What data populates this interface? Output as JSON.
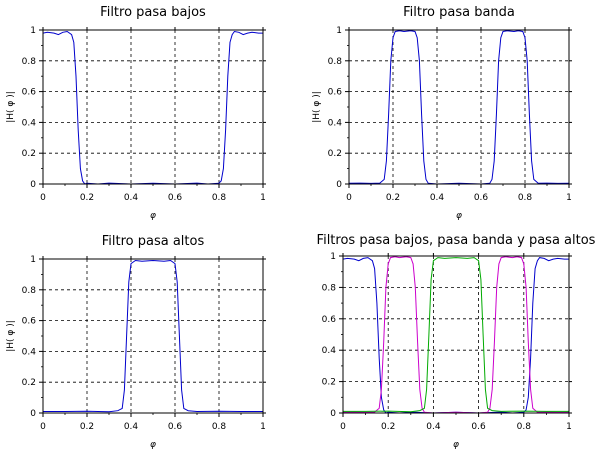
{
  "chart_data": [
    {
      "type": "line",
      "title": "Filtro pasa bajos",
      "xlabel": "φ",
      "ylabel": "|H(   φ   )|",
      "xlim": [
        0,
        1
      ],
      "ylim": [
        0,
        1
      ],
      "x_ticks": [
        "0",
        "0.2",
        "0.4",
        "0.6",
        "0.8",
        "1"
      ],
      "y_ticks": [
        "0",
        "0.2",
        "0.4",
        "0.6",
        "0.8",
        "1"
      ],
      "grid": true,
      "series": [
        {
          "color": "#0000cc",
          "x": [
            0,
            0.02,
            0.05,
            0.07,
            0.09,
            0.11,
            0.13,
            0.14,
            0.15,
            0.16,
            0.17,
            0.18,
            0.19,
            0.2,
            0.25,
            0.3,
            0.4,
            0.5,
            0.6,
            0.7,
            0.75,
            0.8,
            0.81,
            0.82,
            0.83,
            0.84,
            0.85,
            0.86,
            0.87,
            0.89,
            0.91,
            0.93,
            0.95,
            0.98,
            1
          ],
          "y": [
            0.98,
            0.985,
            0.98,
            0.97,
            0.985,
            0.99,
            0.97,
            0.92,
            0.7,
            0.35,
            0.1,
            0.02,
            0.0,
            0.005,
            0.0,
            0.006,
            0.0,
            0.005,
            0.0,
            0.006,
            0.0,
            0.005,
            0.02,
            0.1,
            0.35,
            0.7,
            0.92,
            0.97,
            0.99,
            0.985,
            0.97,
            0.98,
            0.985,
            0.98,
            0.98
          ]
        }
      ]
    },
    {
      "type": "line",
      "title": "Filtro pasa banda",
      "xlabel": "φ",
      "ylabel": "|H(   φ   )|",
      "xlim": [
        0,
        1
      ],
      "ylim": [
        0,
        1
      ],
      "x_ticks": [
        "0",
        "0.2",
        "0.4",
        "0.6",
        "0.8",
        "1"
      ],
      "y_ticks": [
        "0",
        "0.2",
        "0.4",
        "0.6",
        "0.8",
        "1"
      ],
      "grid": true,
      "series": [
        {
          "color": "#0000cc",
          "x": [
            0,
            0.05,
            0.1,
            0.14,
            0.16,
            0.17,
            0.18,
            0.19,
            0.2,
            0.21,
            0.23,
            0.25,
            0.28,
            0.3,
            0.31,
            0.32,
            0.33,
            0.34,
            0.35,
            0.36,
            0.4,
            0.5,
            0.6,
            0.64,
            0.65,
            0.66,
            0.67,
            0.68,
            0.69,
            0.7,
            0.72,
            0.75,
            0.77,
            0.79,
            0.8,
            0.81,
            0.82,
            0.83,
            0.84,
            0.86,
            0.9,
            0.95,
            1
          ],
          "y": [
            0.005,
            0.006,
            0.004,
            0.006,
            0.03,
            0.15,
            0.45,
            0.8,
            0.95,
            0.99,
            0.995,
            0.99,
            0.995,
            0.99,
            0.95,
            0.8,
            0.45,
            0.15,
            0.03,
            0.005,
            0.0,
            0.005,
            0.0,
            0.005,
            0.03,
            0.15,
            0.45,
            0.8,
            0.95,
            0.99,
            0.995,
            0.99,
            0.995,
            0.99,
            0.95,
            0.8,
            0.45,
            0.15,
            0.03,
            0.005,
            0.006,
            0.004,
            0.005
          ]
        }
      ]
    },
    {
      "type": "line",
      "title": "Filtro pasa altos",
      "xlabel": "φ",
      "ylabel": "|H(   φ   )|",
      "xlim": [
        0,
        1
      ],
      "ylim": [
        0,
        1
      ],
      "x_ticks": [
        "0",
        "0.2",
        "0.4",
        "0.6",
        "0.8",
        "1"
      ],
      "y_ticks": [
        "0",
        "0.2",
        "0.4",
        "0.6",
        "0.8",
        "1"
      ],
      "grid": true,
      "series": [
        {
          "color": "#0000cc",
          "x": [
            0,
            0.1,
            0.2,
            0.3,
            0.34,
            0.36,
            0.37,
            0.38,
            0.39,
            0.4,
            0.42,
            0.45,
            0.5,
            0.55,
            0.58,
            0.6,
            0.61,
            0.62,
            0.63,
            0.64,
            0.66,
            0.7,
            0.8,
            0.9,
            1
          ],
          "y": [
            0.01,
            0.01,
            0.012,
            0.008,
            0.015,
            0.03,
            0.15,
            0.5,
            0.85,
            0.97,
            0.99,
            0.985,
            0.99,
            0.985,
            0.99,
            0.97,
            0.85,
            0.5,
            0.15,
            0.03,
            0.015,
            0.01,
            0.012,
            0.01,
            0.01
          ]
        }
      ]
    },
    {
      "type": "line",
      "title": "Filtros pasa bajos, pasa banda y pasa altos",
      "xlabel": "φ",
      "ylabel": "",
      "xlim": [
        0,
        1
      ],
      "ylim": [
        0,
        1
      ],
      "x_ticks": [
        "0",
        "0.2",
        "0.4",
        "0.6",
        "0.8",
        "1"
      ],
      "y_ticks": [
        "0",
        "0.2",
        "0.4",
        "0.6",
        "0.8",
        "1"
      ],
      "grid": true,
      "series": [
        {
          "color": "#0000cc",
          "x": [
            0,
            0.02,
            0.05,
            0.07,
            0.09,
            0.11,
            0.13,
            0.14,
            0.15,
            0.16,
            0.17,
            0.18,
            0.19,
            0.2,
            0.25,
            0.3,
            0.4,
            0.5,
            0.6,
            0.7,
            0.75,
            0.8,
            0.81,
            0.82,
            0.83,
            0.84,
            0.85,
            0.86,
            0.87,
            0.89,
            0.91,
            0.93,
            0.95,
            0.98,
            1
          ],
          "y": [
            0.98,
            0.985,
            0.98,
            0.97,
            0.985,
            0.99,
            0.97,
            0.92,
            0.7,
            0.35,
            0.1,
            0.02,
            0.0,
            0.005,
            0.0,
            0.006,
            0.0,
            0.005,
            0.0,
            0.006,
            0.0,
            0.005,
            0.02,
            0.1,
            0.35,
            0.7,
            0.92,
            0.97,
            0.99,
            0.985,
            0.97,
            0.98,
            0.985,
            0.98,
            0.98
          ]
        },
        {
          "color": "#cc00cc",
          "x": [
            0,
            0.05,
            0.1,
            0.14,
            0.16,
            0.17,
            0.18,
            0.19,
            0.2,
            0.21,
            0.23,
            0.25,
            0.28,
            0.3,
            0.31,
            0.32,
            0.33,
            0.34,
            0.35,
            0.36,
            0.4,
            0.5,
            0.6,
            0.64,
            0.65,
            0.66,
            0.67,
            0.68,
            0.69,
            0.7,
            0.72,
            0.75,
            0.77,
            0.79,
            0.8,
            0.81,
            0.82,
            0.83,
            0.84,
            0.86,
            0.9,
            0.95,
            1
          ],
          "y": [
            0.005,
            0.006,
            0.004,
            0.006,
            0.03,
            0.15,
            0.45,
            0.8,
            0.95,
            0.99,
            0.995,
            0.99,
            0.995,
            0.99,
            0.95,
            0.8,
            0.45,
            0.15,
            0.03,
            0.005,
            0.0,
            0.005,
            0.0,
            0.005,
            0.03,
            0.15,
            0.45,
            0.8,
            0.95,
            0.99,
            0.995,
            0.99,
            0.995,
            0.99,
            0.95,
            0.8,
            0.45,
            0.15,
            0.03,
            0.005,
            0.006,
            0.004,
            0.005
          ]
        },
        {
          "color": "#00aa00",
          "x": [
            0,
            0.1,
            0.2,
            0.3,
            0.34,
            0.36,
            0.37,
            0.38,
            0.39,
            0.4,
            0.42,
            0.45,
            0.5,
            0.55,
            0.58,
            0.6,
            0.61,
            0.62,
            0.63,
            0.64,
            0.66,
            0.7,
            0.8,
            0.9,
            1
          ],
          "y": [
            0.01,
            0.01,
            0.012,
            0.008,
            0.015,
            0.03,
            0.15,
            0.5,
            0.85,
            0.97,
            0.99,
            0.985,
            0.99,
            0.985,
            0.99,
            0.97,
            0.85,
            0.5,
            0.15,
            0.03,
            0.015,
            0.01,
            0.012,
            0.01,
            0.01
          ]
        }
      ]
    }
  ]
}
